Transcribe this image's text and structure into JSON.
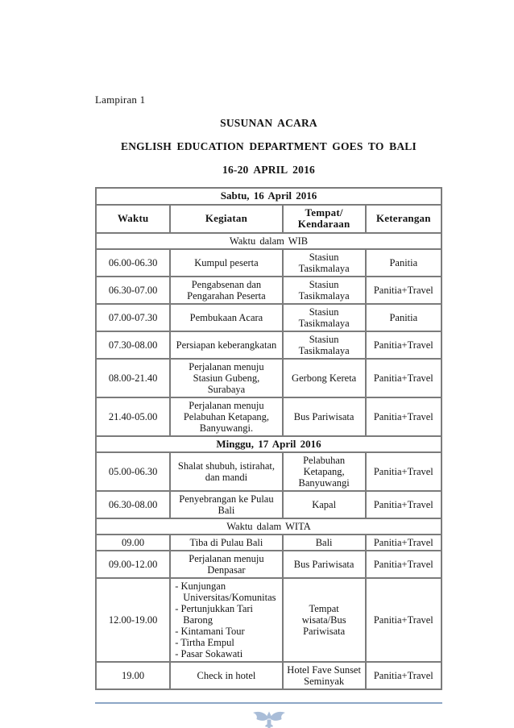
{
  "page": {
    "lampiran": "Lampiran 1",
    "title": "SUSUNAN ACARA",
    "subtitle": "ENGLISH EDUCATION DEPARTMENT GOES TO BALI",
    "date_range": "16-20 APRIL 2016"
  },
  "schedule_table": {
    "column_headers": [
      "Waktu",
      "Kegiatan",
      "Tempat/\nKendaraan",
      "Keterangan"
    ],
    "rows": [
      {
        "type": "day",
        "label": "Sabtu, 16 April 2016"
      },
      {
        "type": "columns"
      },
      {
        "type": "zone",
        "label": "Waktu dalam WIB"
      },
      {
        "type": "entry",
        "waktu": "06.00-06.30",
        "kegiatan": "Kumpul peserta",
        "tempat": "Stasiun Tasikmalaya",
        "keterangan": "Panitia"
      },
      {
        "type": "entry",
        "waktu": "06.30-07.00",
        "kegiatan": "Pengabsenan dan Pengarahan Peserta",
        "tempat": "Stasiun Tasikmalaya",
        "keterangan": "Panitia+Travel"
      },
      {
        "type": "entry",
        "waktu": "07.00-07.30",
        "kegiatan": "Pembukaan Acara",
        "tempat": "Stasiun Tasikmalaya",
        "keterangan": "Panitia"
      },
      {
        "type": "entry",
        "waktu": "07.30-08.00",
        "kegiatan": "Persiapan keberangkatan",
        "tempat": "Stasiun Tasikmalaya",
        "keterangan": "Panitia+Travel"
      },
      {
        "type": "entry",
        "waktu": "08.00-21.40",
        "kegiatan": "Perjalanan menuju Stasiun Gubeng, Surabaya",
        "tempat": "Gerbong Kereta",
        "keterangan": "Panitia+Travel"
      },
      {
        "type": "entry",
        "waktu": "21.40-05.00",
        "kegiatan": "Perjalanan menuju Pelabuhan Ketapang, Banyuwangi.",
        "tempat": "Bus Pariwisata",
        "keterangan": "Panitia+Travel"
      },
      {
        "type": "day",
        "label": "Minggu, 17 April 2016"
      },
      {
        "type": "entry",
        "waktu": "05.00-06.30",
        "kegiatan": "Shalat shubuh, istirahat, dan mandi",
        "tempat": "Pelabuhan Ketapang, Banyuwangi",
        "keterangan": "Panitia+Travel"
      },
      {
        "type": "entry",
        "waktu": "06.30-08.00",
        "kegiatan": "Penyebrangan ke Pulau Bali",
        "tempat": "Kapal",
        "keterangan": "Panitia+Travel"
      },
      {
        "type": "zone",
        "label": "Waktu dalam WITA"
      },
      {
        "type": "entry",
        "waktu": "09.00",
        "kegiatan": "Tiba di Pulau Bali",
        "tempat": "Bali",
        "keterangan": "Panitia+Travel"
      },
      {
        "type": "entry",
        "waktu": "09.00-12.00",
        "kegiatan": "Perjalanan menuju Denpasar",
        "tempat": "Bus Pariwisata",
        "keterangan": "Panitia+Travel"
      },
      {
        "type": "entry",
        "waktu": "12.00-19.00",
        "kegiatan_items": [
          "- Kunjungan Universitas/Komunitas",
          "- Pertunjukkan Tari Barong",
          "- Kintamani Tour",
          "- Tirtha Empul",
          "- Pasar Sokawati"
        ],
        "tempat": "Tempat wisata/Bus Pariwisata",
        "keterangan": "Panitia+Travel"
      },
      {
        "type": "entry",
        "waktu": "19.00",
        "kegiatan": "Check in hotel",
        "tempat": "Hotel Fave Sunset Seminyak",
        "keterangan": "Panitia+Travel"
      }
    ]
  },
  "footer": {
    "logo_icon": "bird-plant-logo",
    "divider_color": "#8ca6c6",
    "logo_color": "#a9bdd8"
  }
}
